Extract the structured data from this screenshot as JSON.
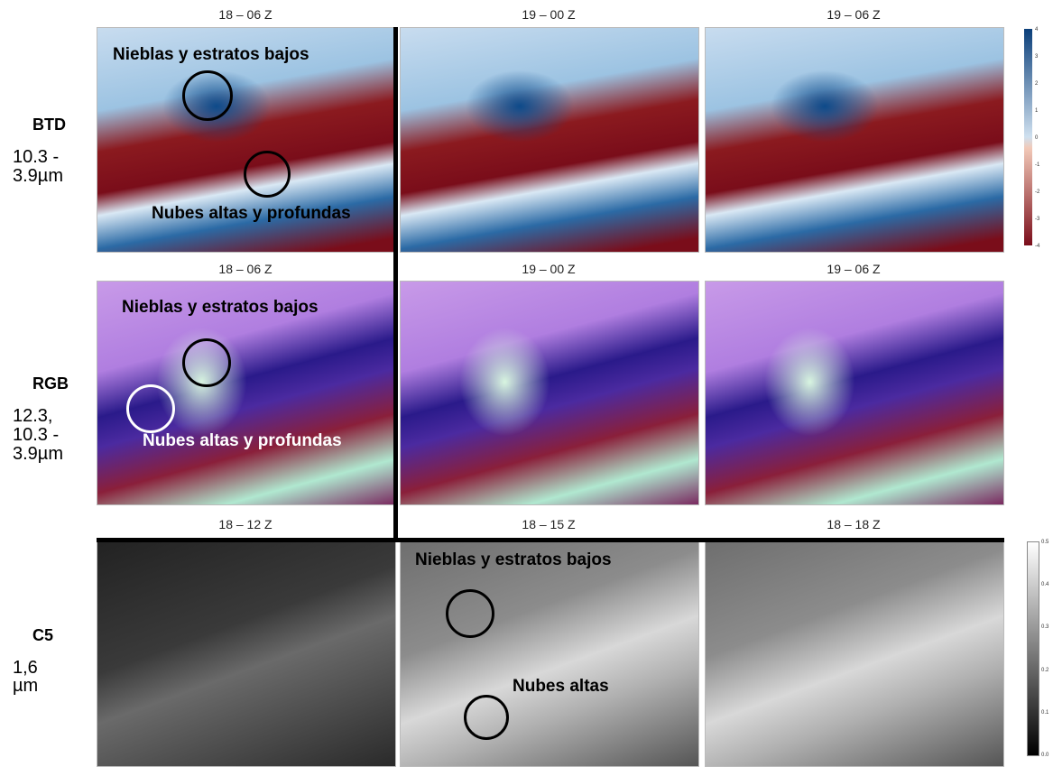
{
  "rows": [
    {
      "label": "BTD",
      "sublabel": [
        "10.3 -",
        "3.9µm"
      ],
      "panels": [
        {
          "title": "18 – 06 Z",
          "annotations": [
            "Nieblas y estratos bajos",
            "Nubes altas y profundas"
          ]
        },
        {
          "title": "19 – 00 Z",
          "annotations": []
        },
        {
          "title": "19 – 06 Z",
          "annotations": []
        }
      ],
      "colorbar": [
        "4",
        "3",
        "2",
        "1",
        "0",
        "-1",
        "-2",
        "-3",
        "-4"
      ]
    },
    {
      "label": "RGB",
      "sublabel": [
        "12.3,",
        "10.3 -",
        "3.9µm"
      ],
      "panels": [
        {
          "title": "18 – 06 Z",
          "annotations": [
            "Nieblas y estratos bajos",
            "Nubes altas y profundas"
          ]
        },
        {
          "title": "19 – 00 Z",
          "annotations": []
        },
        {
          "title": "19 – 06 Z",
          "annotations": []
        }
      ],
      "colorbar": []
    },
    {
      "label": "C5",
      "sublabel": [
        "1,6",
        "µm"
      ],
      "panels": [
        {
          "title": "18 – 12 Z",
          "annotations": []
        },
        {
          "title": "18 – 15 Z",
          "annotations": [
            "Nieblas y estratos bajos",
            "Nubes altas"
          ]
        },
        {
          "title": "18 – 18 Z",
          "annotations": []
        }
      ],
      "colorbar": [
        "0.5",
        "0.4",
        "0.3",
        "0.2",
        "0.1",
        "0.0"
      ]
    }
  ]
}
